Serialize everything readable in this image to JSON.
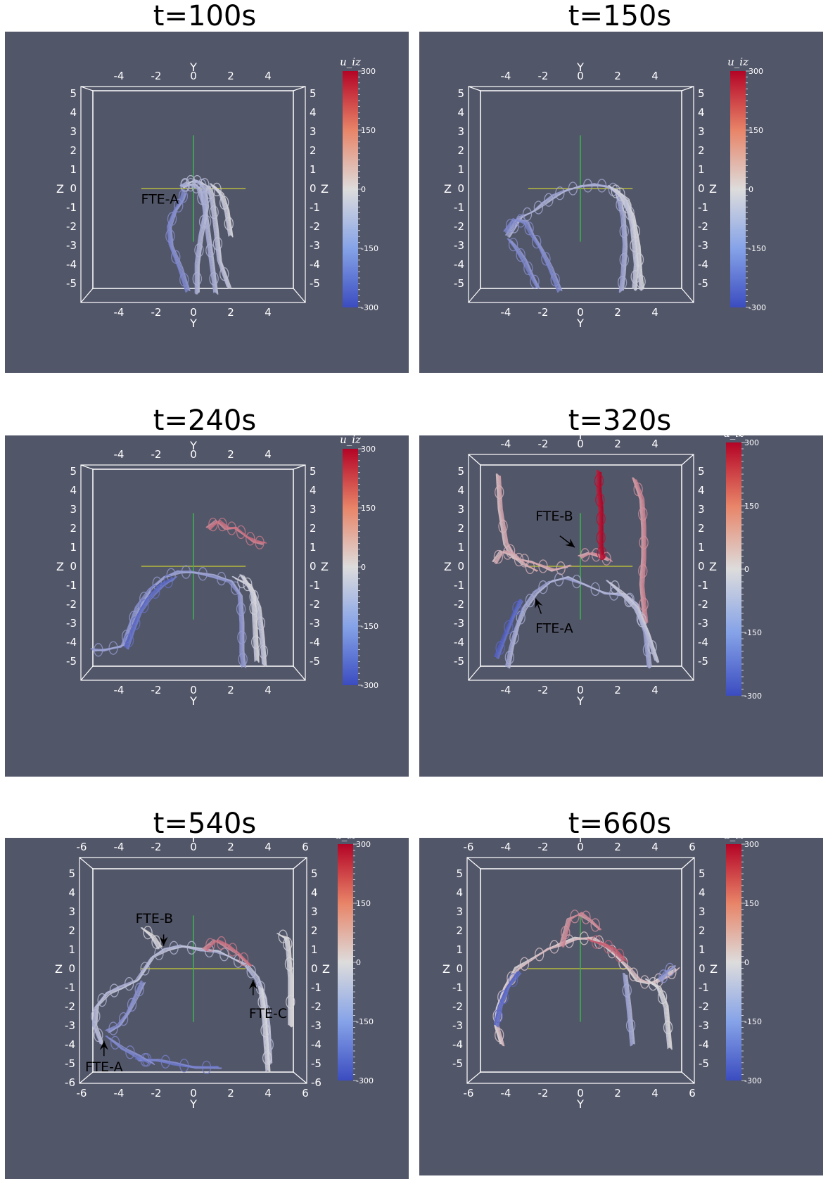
{
  "panels": [
    {
      "title": "t=100s",
      "axes_x": [
        "-4",
        "-2",
        "0",
        "2",
        "4"
      ],
      "axes_z": [
        "5",
        "4",
        "3",
        "2",
        "1",
        "0",
        "-1",
        "-2",
        "-3",
        "-4",
        "-5"
      ],
      "labels": [
        {
          "text": "FTE-A"
        }
      ]
    },
    {
      "title": "t=150s",
      "axes_x": [
        "-4",
        "-2",
        "0",
        "2",
        "4"
      ],
      "axes_z": [
        "5",
        "4",
        "3",
        "2",
        "1",
        "0",
        "-1",
        "-2",
        "-3",
        "-4",
        "-5"
      ],
      "labels": []
    },
    {
      "title": "t=240s",
      "axes_x": [
        "-4",
        "-2",
        "0",
        "2",
        "4"
      ],
      "axes_z": [
        "5",
        "4",
        "3",
        "2",
        "1",
        "0",
        "-1",
        "-2",
        "-3",
        "-4",
        "-5"
      ],
      "labels": []
    },
    {
      "title": "t=320s",
      "axes_x": [
        "-4",
        "-2",
        "0",
        "2",
        "4"
      ],
      "axes_z": [
        "5",
        "4",
        "3",
        "2",
        "1",
        "0",
        "-1",
        "-2",
        "-3",
        "-4",
        "-5"
      ],
      "labels": [
        {
          "text": "FTE-B"
        },
        {
          "text": "FTE-A"
        }
      ]
    },
    {
      "title": "t=540s",
      "axes_x": [
        "-6",
        "-4",
        "-2",
        "0",
        "2",
        "4",
        "6"
      ],
      "axes_z": [
        "5",
        "4",
        "3",
        "2",
        "1",
        "0",
        "-1",
        "-2",
        "-3",
        "-4",
        "-5",
        "-6"
      ],
      "labels": [
        {
          "text": "FTE-B"
        },
        {
          "text": "FTE-C"
        },
        {
          "text": "FTE-A"
        }
      ]
    },
    {
      "title": "t=660s",
      "axes_x": [
        "-6",
        "-4",
        "-2",
        "0",
        "2",
        "4",
        "6"
      ],
      "axes_z": [
        "5",
        "4",
        "3",
        "2",
        "1",
        "0",
        "-1",
        "-2",
        "-3",
        "-4",
        "-5"
      ],
      "labels": []
    }
  ],
  "axis_y_label": "Y",
  "axis_z_label": "Z",
  "colorbar": {
    "title": "u_iz",
    "ticks": [
      "300",
      "150",
      "0",
      "-150",
      "-300"
    ],
    "colors": {
      "high": "#b40426",
      "mid": "#dddcdc",
      "low": "#3b4cc0"
    }
  },
  "colors": {
    "background": "#525669",
    "frame": "#ffffff",
    "yaxis_line": "#b5b83a",
    "zaxis_line": "#39b54a"
  }
}
